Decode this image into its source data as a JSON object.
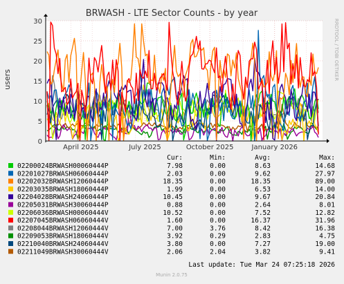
{
  "chart_data": {
    "type": "line",
    "title": "BRWASH - LTE Sector Counts - by year",
    "ylabel": "users",
    "ylim": [
      0,
      30
    ],
    "yticks": [
      0,
      5,
      10,
      15,
      20,
      25,
      30
    ],
    "xlim": [
      "2025-02-24",
      "2026-03-24"
    ],
    "xticks": [
      {
        "label": "April 2025",
        "date": "2025-04-15"
      },
      {
        "label": "July 2025",
        "date": "2025-07-15"
      },
      {
        "label": "October 2025",
        "date": "2025-10-15"
      },
      {
        "label": "January 2026",
        "date": "2026-01-15"
      }
    ],
    "grid": true,
    "watermark": "RRDTOOL / TOBI OETIKER",
    "legend_headers": [
      "Cur:",
      "Min:",
      "Avg:",
      "Max:"
    ],
    "series": [
      {
        "name": "02200024BRWASH00060444P",
        "color": "#00cc00",
        "cur": "7.98",
        "min": "0.00",
        "avg": "8.63",
        "max": "14.68"
      },
      {
        "name": "02201027BRWASH06060444P",
        "color": "#0066b3",
        "cur": "2.03",
        "min": "0.00",
        "avg": "9.62",
        "max": "27.97"
      },
      {
        "name": "02202032BRWASH12060444P",
        "color": "#ff8000",
        "cur": "18.35",
        "min": "0.00",
        "avg": "18.35",
        "max": "89.00"
      },
      {
        "name": "02203035BRWASH18060444P",
        "color": "#ffcc00",
        "cur": "1.99",
        "min": "0.00",
        "avg": "6.53",
        "max": "14.00"
      },
      {
        "name": "02204028BRWASH24060444P",
        "color": "#330099",
        "cur": "10.45",
        "min": "0.00",
        "avg": "9.67",
        "max": "20.84"
      },
      {
        "name": "02205031BRWASH30060444P",
        "color": "#990099",
        "cur": "0.88",
        "min": "0.00",
        "avg": "2.64",
        "max": "8.01"
      },
      {
        "name": "02206036BRWASH00060444V",
        "color": "#ccff00",
        "cur": "10.52",
        "min": "0.00",
        "avg": "7.52",
        "max": "12.82"
      },
      {
        "name": "02207045BRWASH06060444V",
        "color": "#ff0000",
        "cur": "1.60",
        "min": "0.00",
        "avg": "16.37",
        "max": "31.96"
      },
      {
        "name": "02208044BRWASH12060444V",
        "color": "#808080",
        "cur": "7.00",
        "min": "3.76",
        "avg": "8.42",
        "max": "16.38"
      },
      {
        "name": "02209053BRWASH18060444V",
        "color": "#008f00",
        "cur": "3.92",
        "min": "0.29",
        "avg": "2.83",
        "max": "4.75"
      },
      {
        "name": "02210040BRWASH24060444V",
        "color": "#00487d",
        "cur": "3.80",
        "min": "0.00",
        "avg": "7.27",
        "max": "19.00"
      },
      {
        "name": "02211049BRWASH30060444V",
        "color": "#b35a00",
        "cur": "2.06",
        "min": "2.04",
        "avg": "3.82",
        "max": "9.41"
      }
    ],
    "last_update": "Last update: Tue Mar 24 07:25:18 2026",
    "footer": "Munin 2.0.75"
  }
}
